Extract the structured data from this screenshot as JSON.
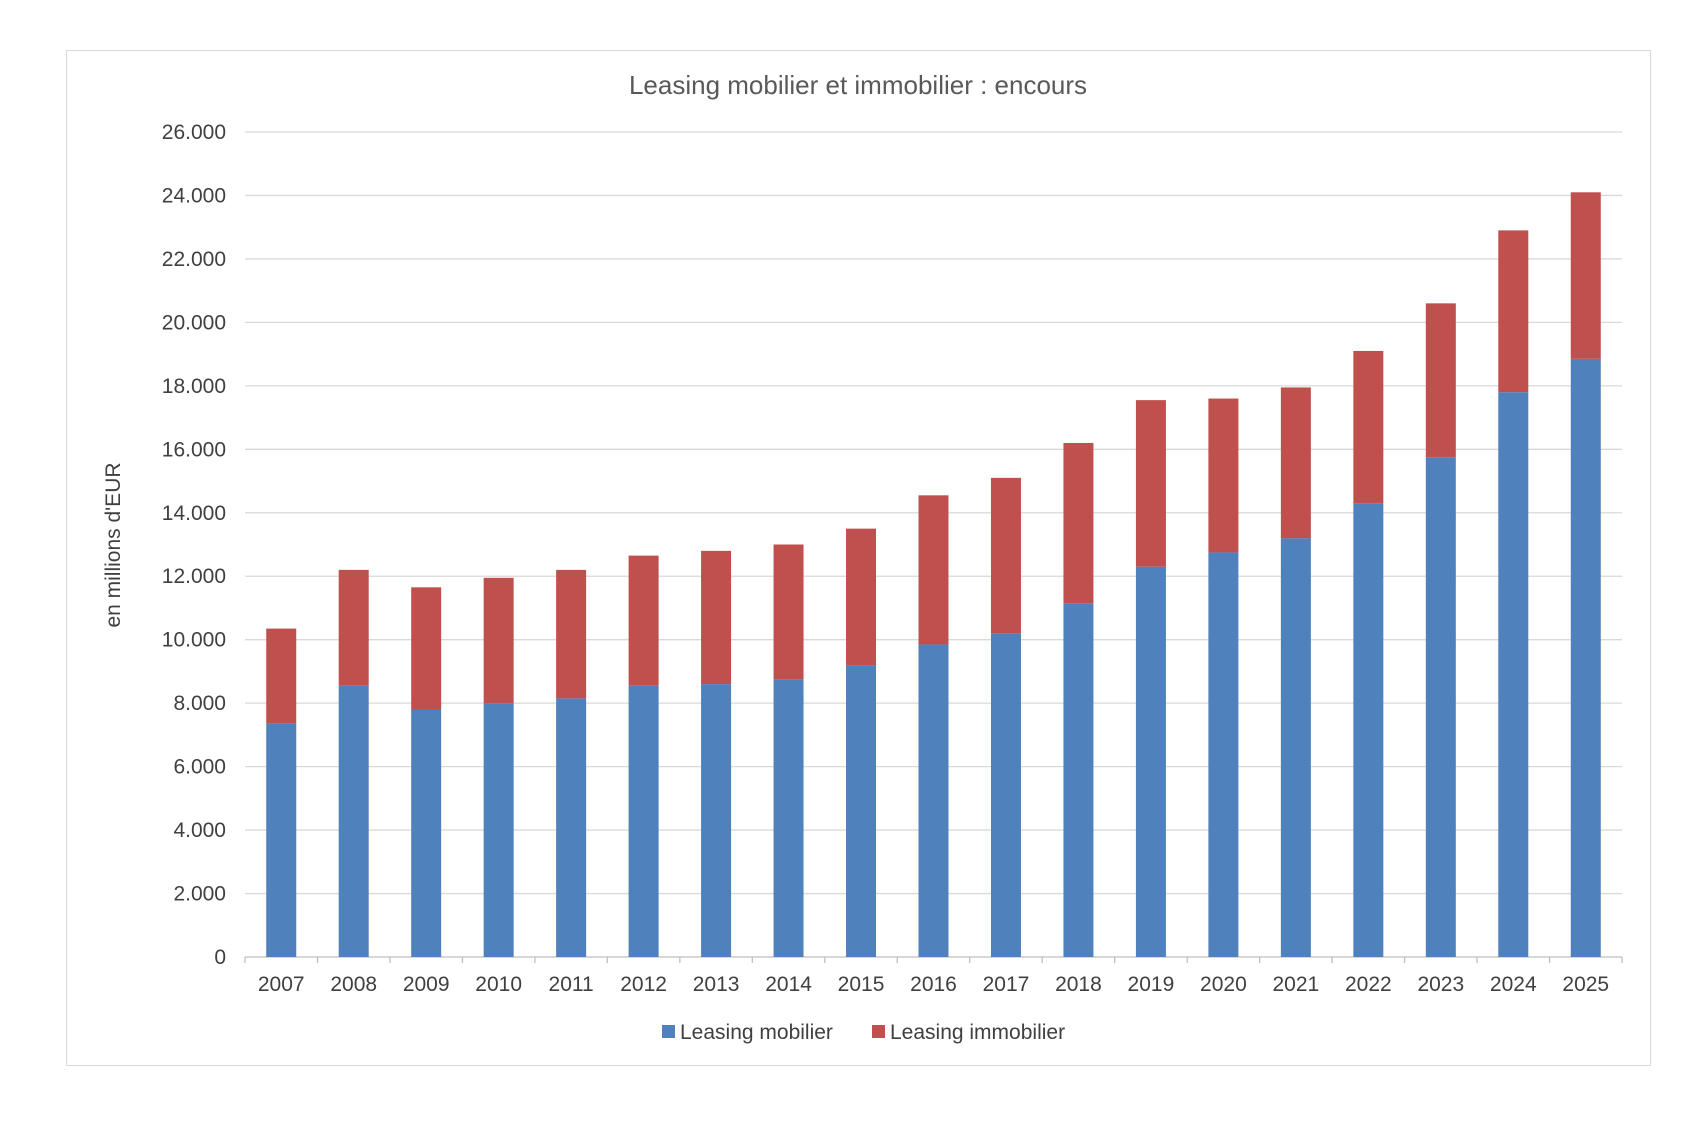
{
  "chart_data": {
    "type": "bar",
    "stacked": true,
    "title": "Leasing mobilier et immobilier : encours",
    "xlabel": "",
    "ylabel": "en millions d'EUR",
    "ylim": [
      0,
      26000
    ],
    "yticks": [
      "0",
      "2.000",
      "4.000",
      "6.000",
      "8.000",
      "10.000",
      "12.000",
      "14.000",
      "16.000",
      "18.000",
      "20.000",
      "22.000",
      "24.000",
      "26.000"
    ],
    "grid": true,
    "legend_position": "bottom",
    "categories": [
      "2007",
      "2008",
      "2009",
      "2010",
      "2011",
      "2012",
      "2013",
      "2014",
      "2015",
      "2016",
      "2017",
      "2018",
      "2019",
      "2020",
      "2021",
      "2022",
      "2023",
      "2024",
      "2025"
    ],
    "series": [
      {
        "name": "Leasing mobilier",
        "color": "#4f81bd",
        "values": [
          7350,
          8550,
          7800,
          8000,
          8150,
          8550,
          8600,
          8750,
          9200,
          9850,
          10200,
          11150,
          12300,
          12750,
          13200,
          14300,
          15750,
          17800,
          18850
        ]
      },
      {
        "name": "Leasing immobilier",
        "color": "#c0504d",
        "values": [
          3000,
          3650,
          3850,
          3950,
          4050,
          4100,
          4200,
          4250,
          4300,
          4700,
          4900,
          5050,
          5250,
          4850,
          4750,
          4800,
          4850,
          5100,
          5250
        ]
      }
    ]
  }
}
